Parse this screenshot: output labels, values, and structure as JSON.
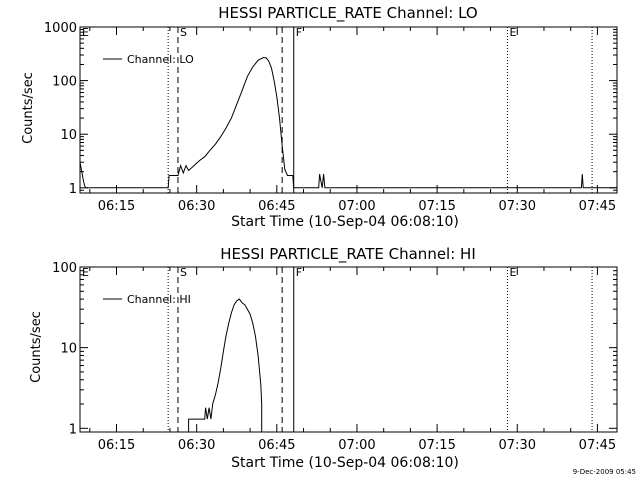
{
  "footer": {
    "timestamp": "9-Dec-2009 05:45"
  },
  "chart_data": [
    {
      "type": "line",
      "title": "HESSI PARTICLE_RATE Channel: LO",
      "xlabel": "Start Time (10-Sep-04 06:08:10)",
      "ylabel": "Counts/sec",
      "y_scale": "log",
      "xlim": [
        "06:08:10",
        "07:48:40"
      ],
      "ylim": [
        0.8,
        1000
      ],
      "x_ticks": [
        "06:15",
        "06:30",
        "06:45",
        "07:00",
        "07:15",
        "07:30",
        "07:45"
      ],
      "y_ticks": [
        "1",
        "10",
        "100",
        "1000"
      ],
      "legend": {
        "position": "top-left",
        "entries": [
          "Channel: LO"
        ]
      },
      "markers": [
        {
          "label": "E",
          "time": "06:08:10",
          "style": "dotted"
        },
        {
          "label": "",
          "time": "06:24:40",
          "style": "dotted"
        },
        {
          "label": "S",
          "time": "06:26:30",
          "style": "dashed"
        },
        {
          "label": "",
          "time": "06:46:00",
          "style": "dashed"
        },
        {
          "label": "F",
          "time": "06:48:10",
          "style": "solid"
        },
        {
          "label": "E",
          "time": "07:28:10",
          "style": "dotted"
        },
        {
          "label": "",
          "time": "07:44:00",
          "style": "dotted"
        }
      ],
      "series": [
        {
          "name": "Channel: LO",
          "points": [
            [
              "06:08:10",
              3.0
            ],
            [
              "06:08:30",
              2.0
            ],
            [
              "06:08:50",
              1.3
            ],
            [
              "06:09:10",
              1.0
            ],
            [
              "06:24:40",
              1.0
            ],
            [
              "06:24:50",
              1.7
            ],
            [
              "06:26:30",
              1.7
            ],
            [
              "06:27:00",
              2.6
            ],
            [
              "06:27:30",
              1.9
            ],
            [
              "06:28:00",
              2.6
            ],
            [
              "06:28:30",
              2.1
            ],
            [
              "06:29:30",
              2.6
            ],
            [
              "06:30:30",
              3.2
            ],
            [
              "06:31:30",
              3.8
            ],
            [
              "06:32:30",
              5.0
            ],
            [
              "06:33:30",
              6.5
            ],
            [
              "06:34:30",
              9.0
            ],
            [
              "06:35:30",
              13
            ],
            [
              "06:36:30",
              20
            ],
            [
              "06:37:30",
              36
            ],
            [
              "06:38:30",
              65
            ],
            [
              "06:39:30",
              120
            ],
            [
              "06:40:30",
              180
            ],
            [
              "06:41:30",
              240
            ],
            [
              "06:42:30",
              270
            ],
            [
              "06:43:00",
              265
            ],
            [
              "06:43:30",
              230
            ],
            [
              "06:44:00",
              170
            ],
            [
              "06:44:30",
              100
            ],
            [
              "06:45:00",
              50
            ],
            [
              "06:45:30",
              20
            ],
            [
              "06:46:00",
              6
            ],
            [
              "06:46:30",
              2.2
            ],
            [
              "06:47:00",
              1.7
            ],
            [
              "06:48:00",
              1.7
            ],
            [
              "06:48:10",
              1.0
            ],
            [
              "06:52:50",
              1.0
            ],
            [
              "06:53:00",
              1.8
            ],
            [
              "06:53:30",
              1.0
            ],
            [
              "06:53:45",
              1.8
            ],
            [
              "06:54:00",
              1.0
            ],
            [
              "07:42:00",
              1.0
            ],
            [
              "07:42:10",
              1.8
            ],
            [
              "07:42:20",
              1.0
            ],
            [
              "07:48:40",
              1.0
            ]
          ]
        }
      ]
    },
    {
      "type": "line",
      "title": "HESSI PARTICLE_RATE Channel: HI",
      "xlabel": "Start Time (10-Sep-04 06:08:10)",
      "ylabel": "Counts/sec",
      "y_scale": "log",
      "xlim": [
        "06:08:10",
        "07:48:40"
      ],
      "ylim": [
        0.9,
        100
      ],
      "x_ticks": [
        "06:15",
        "06:30",
        "06:45",
        "07:00",
        "07:15",
        "07:30",
        "07:45"
      ],
      "y_ticks": [
        "1",
        "10",
        "100"
      ],
      "legend": {
        "position": "top-left",
        "entries": [
          "Channel: HI"
        ]
      },
      "markers": [
        {
          "label": "E",
          "time": "06:08:10",
          "style": "dotted"
        },
        {
          "label": "",
          "time": "06:24:40",
          "style": "dotted"
        },
        {
          "label": "S",
          "time": "06:26:30",
          "style": "dashed"
        },
        {
          "label": "",
          "time": "06:46:00",
          "style": "dashed"
        },
        {
          "label": "F",
          "time": "06:48:10",
          "style": "solid"
        },
        {
          "label": "E",
          "time": "07:28:10",
          "style": "dotted"
        },
        {
          "label": "",
          "time": "07:44:00",
          "style": "dotted"
        }
      ],
      "series": [
        {
          "name": "Channel: HI",
          "points": [
            [
              "06:28:30",
              0.9
            ],
            [
              "06:28:30",
              1.3
            ],
            [
              "06:31:30",
              1.3
            ],
            [
              "06:31:40",
              1.8
            ],
            [
              "06:32:00",
              1.3
            ],
            [
              "06:32:20",
              1.8
            ],
            [
              "06:32:40",
              1.3
            ],
            [
              "06:33:00",
              2.0
            ],
            [
              "06:33:30",
              2.6
            ],
            [
              "06:34:00",
              3.6
            ],
            [
              "06:34:30",
              5.5
            ],
            [
              "06:35:00",
              9.0
            ],
            [
              "06:35:30",
              14
            ],
            [
              "06:36:00",
              20
            ],
            [
              "06:36:30",
              27
            ],
            [
              "06:37:00",
              34
            ],
            [
              "06:37:30",
              38
            ],
            [
              "06:38:00",
              40
            ],
            [
              "06:38:30",
              36
            ],
            [
              "06:39:00",
              34
            ],
            [
              "06:39:30",
              30
            ],
            [
              "06:40:00",
              26
            ],
            [
              "06:40:30",
              20
            ],
            [
              "06:41:00",
              14
            ],
            [
              "06:41:30",
              8
            ],
            [
              "06:42:00",
              3.5
            ],
            [
              "06:42:10",
              2.0
            ],
            [
              "06:42:10",
              0.9
            ]
          ]
        }
      ]
    }
  ]
}
